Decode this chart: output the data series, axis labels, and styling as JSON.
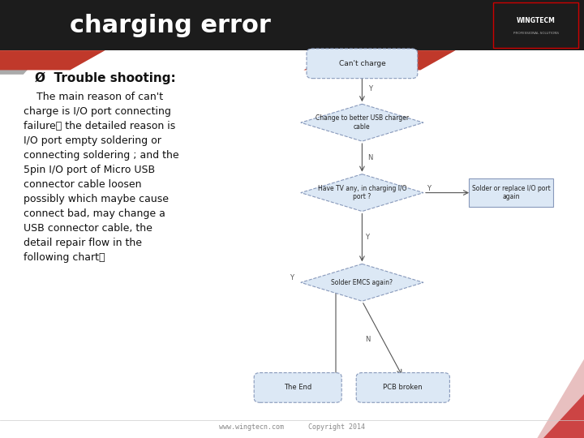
{
  "title": "charging error",
  "title_bg": "#1c1c1c",
  "title_color": "#ffffff",
  "title_fontsize": 22,
  "bg_color": "#ffffff",
  "footer_text": "www.wingtecn.com      Copyright 2014",
  "trouble_shooting_header": "Ø  Trouble shooting:",
  "main_text": "    The main reason of can't\ncharge is I/O port connecting\nfailure， the detailed reason is\nI/O port empty soldering or\nconnecting soldering ; and the\n5pin I/O port of Micro USB\nconnector cable loosen\npossibly which maybe cause\nconnect bad, may change a\nUSB connector cable, the\ndetail repair flow in the\nfollowing chart：",
  "node1_label": "Can't charge",
  "node2_label": "Change to better USB charger\ncable",
  "node3_label": "Have TV any, in charging I/O\nport ?",
  "node4_label": "Solder or replace I/O port\nagain",
  "node5_label": "Solder EMCS again?",
  "node6_label": "The End",
  "node7_label": "PCB broken",
  "arrow_color": "#555555",
  "node_border_color": "#8899bb",
  "node_fill_color": "#dce8f5",
  "node_text_color": "#222222",
  "header_red": "#c0392b",
  "header_gray": "#aaaaaa",
  "logo_border": "#cc0000",
  "footer_color": "#888888",
  "dec_pink": "#e8c0c0",
  "dec_red": "#cc4444"
}
